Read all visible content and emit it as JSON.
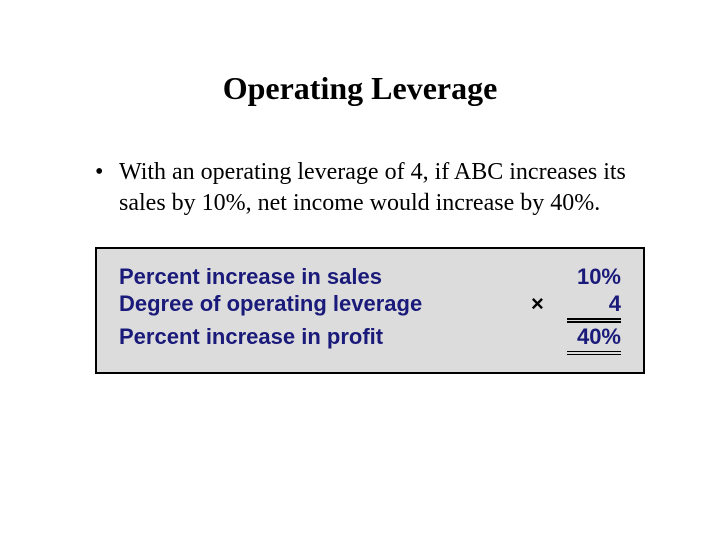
{
  "title": "Operating Leverage",
  "bullet_marker": "•",
  "bullet_text": "With an operating leverage of 4, if ABC increases its sales by 10%,  net income would increase by 40%.",
  "calc": {
    "rows": [
      {
        "label": "Percent increase in sales",
        "op": "",
        "value": "10%",
        "style": "plain"
      },
      {
        "label": "Degree of operating leverage",
        "op": "×",
        "value": "4",
        "style": "underline"
      },
      {
        "label": "Percent increase in profit",
        "op": "",
        "value": "40%",
        "style": "double"
      }
    ],
    "box_bg": "#dcdcdc",
    "box_border": "#000000",
    "text_color": "#1a1a7a"
  }
}
